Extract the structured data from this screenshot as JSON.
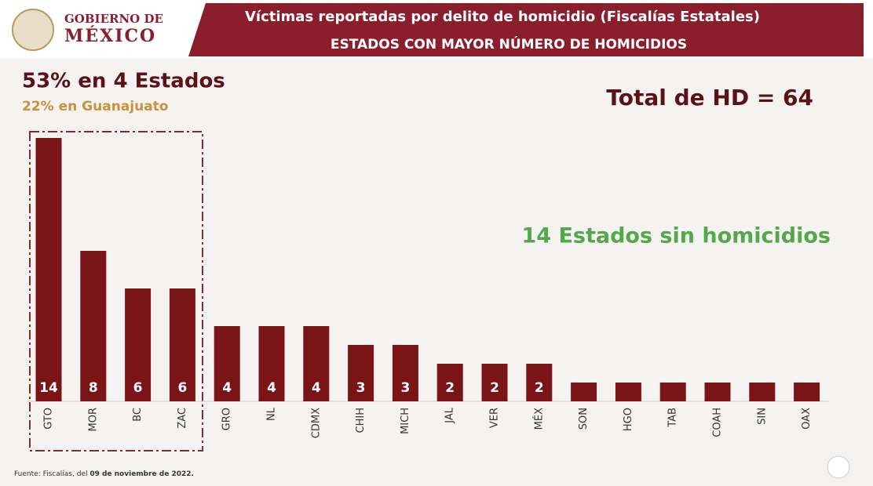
{
  "header": {
    "line1": "GOBIERNO DE",
    "line2": "MÉXICO"
  },
  "chart_data": {
    "type": "bar",
    "title": "Víctimas reportadas por delito de homicidio (Fiscalías Estatales)",
    "subtitle": "ESTADOS CON MAYOR NÚMERO DE HOMICIDIOS",
    "annotations": [
      "53% en 4 Estados",
      "22% en Guanajuato",
      "Total de HD = 64",
      "14 Estados sin homicidios"
    ],
    "source": [
      "Fuente: Fiscalías, del ",
      "09 de noviembre de 2022."
    ],
    "categories": [
      "GTO",
      "MOR",
      "BC",
      "ZAC",
      "GRO",
      "NL",
      "CDMX",
      "CHIH",
      "MICH",
      "JAL",
      "VER",
      "MÉX",
      "SON",
      "HGO",
      "TAB",
      "COAH",
      "SIN",
      "OAX"
    ],
    "values": [
      14,
      8,
      6,
      6,
      4,
      4,
      4,
      3,
      3,
      2,
      2,
      2,
      1,
      1,
      1,
      1,
      1,
      1
    ],
    "color": "#7a1416"
  }
}
